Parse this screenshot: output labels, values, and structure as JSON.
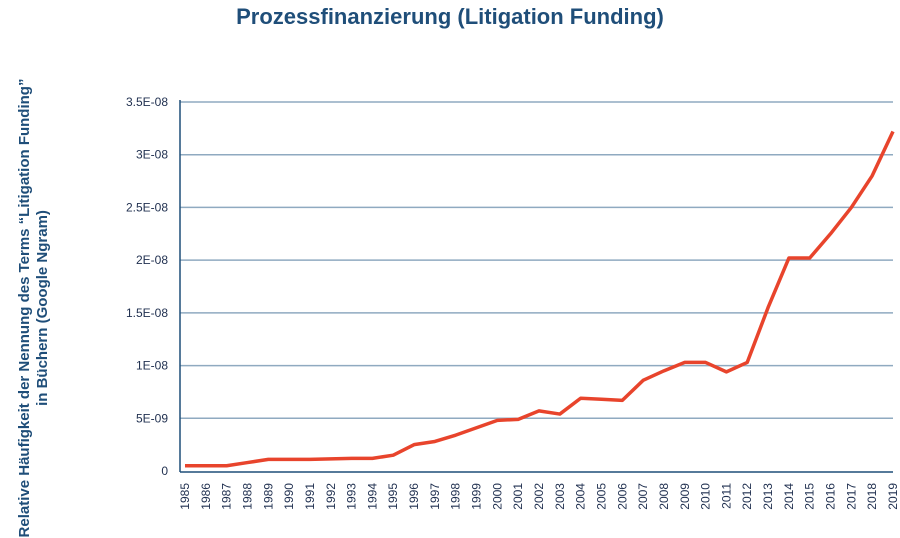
{
  "chart_data": {
    "type": "line",
    "title": "Prozessfinanzierung (Litigation Funding)",
    "xlabel": "",
    "ylabel": "Relative Häufigkeit der Nennung des Terms “Litigation Funding” in Büchern (Google Ngram)",
    "ylim": [
      0,
      3.5e-08
    ],
    "grid": true,
    "yticks": [
      0,
      5e-09,
      1e-08,
      1.5e-08,
      2e-08,
      2.5e-08,
      3e-08,
      3.5e-08
    ],
    "ytick_labels": [
      "0",
      "5E-09",
      "1E-08",
      "1.5E-08",
      "2E-08",
      "2.5E-08",
      "3E-08",
      "3.5E-08"
    ],
    "x": [
      "1985",
      "1986",
      "1987",
      "1988",
      "1989",
      "1990",
      "1991",
      "1992",
      "1993",
      "1994",
      "1995",
      "1996",
      "1997",
      "1998",
      "1999",
      "2000",
      "2001",
      "2002",
      "2003",
      "2004",
      "2005",
      "2006",
      "2007",
      "2008",
      "2009",
      "2010",
      "2011",
      "2012",
      "2013",
      "2014",
      "2015",
      "2016",
      "2017",
      "2018",
      "2019"
    ],
    "series": [
      {
        "name": "Litigation Funding",
        "color": "#e8442c",
        "values": [
          5e-10,
          5e-10,
          5e-10,
          8e-10,
          1.1e-09,
          1.1e-09,
          1.1e-09,
          1.15e-09,
          1.2e-09,
          1.2e-09,
          1.5e-09,
          2.5e-09,
          2.8e-09,
          3.4e-09,
          4.1e-09,
          4.8e-09,
          4.9e-09,
          5.7e-09,
          5.4e-09,
          6.9e-09,
          6.8e-09,
          6.7e-09,
          8.6e-09,
          9.5e-09,
          1.03e-08,
          1.03e-08,
          9.4e-09,
          1.03e-08,
          1.55e-08,
          2.02e-08,
          2.02e-08,
          2.25e-08,
          2.5e-08,
          2.8e-08,
          3.22e-08
        ]
      }
    ]
  }
}
